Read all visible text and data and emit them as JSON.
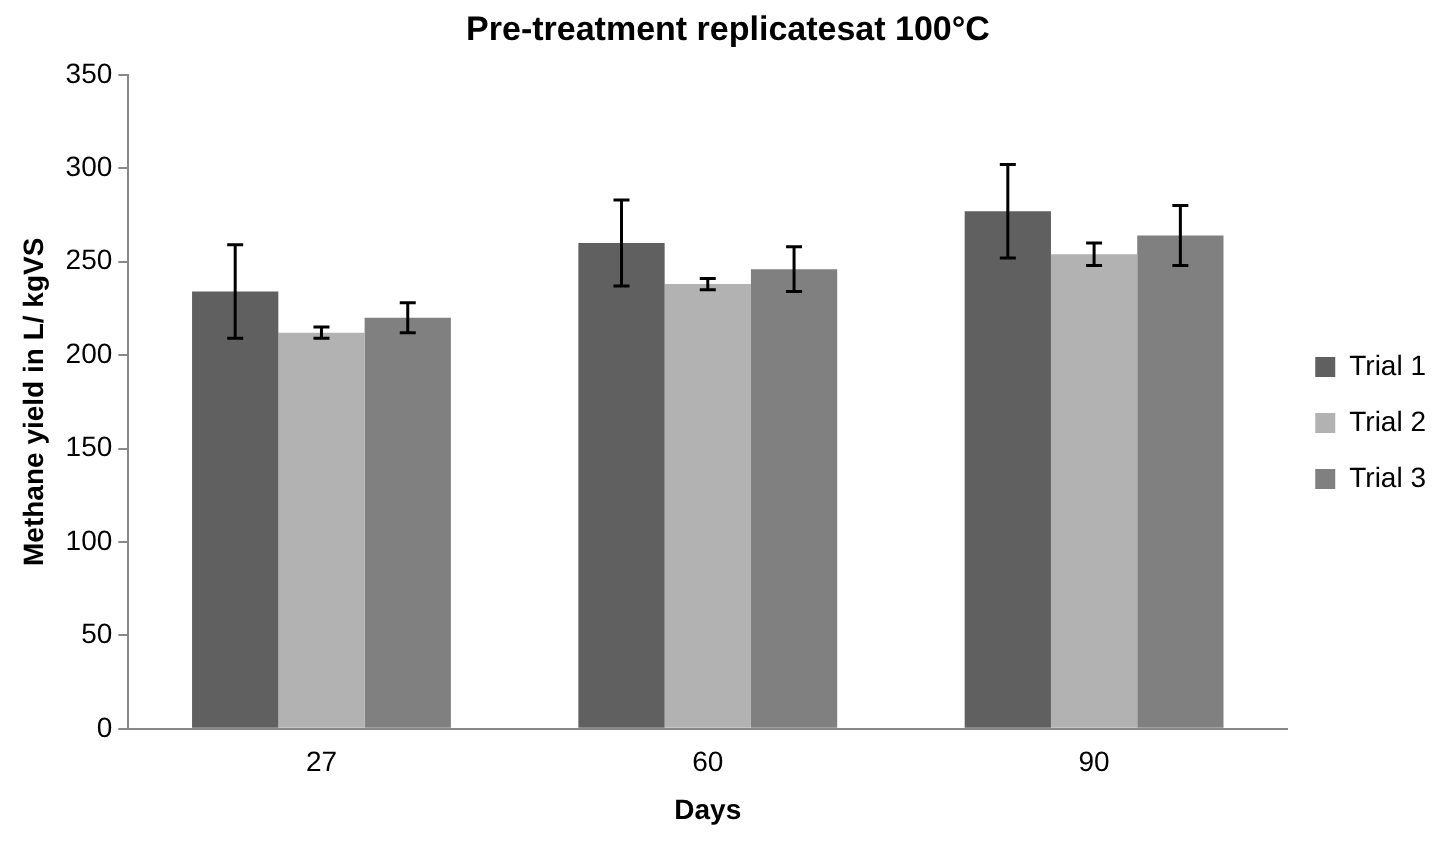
{
  "chart_data": {
    "type": "bar",
    "title": "Pre-treatment replicatesat 100°C",
    "xlabel": "Days",
    "ylabel": "Methane yield in L/ kgVS",
    "categories": [
      "27",
      "60",
      "90"
    ],
    "series": [
      {
        "name": "Trial 1",
        "color": "#606060",
        "values": [
          234,
          260,
          277
        ],
        "errors": [
          25,
          23,
          25
        ]
      },
      {
        "name": "Trial 2",
        "color": "#b2b2b2",
        "values": [
          212,
          238,
          254
        ],
        "errors": [
          3,
          3,
          6
        ]
      },
      {
        "name": "Trial 3",
        "color": "#808080",
        "values": [
          220,
          246,
          264
        ],
        "errors": [
          8,
          12,
          16
        ]
      }
    ],
    "ylim": [
      0,
      350
    ],
    "yticks": [
      0,
      50,
      100,
      150,
      200,
      250,
      300,
      350
    ],
    "grid": false,
    "legend": "right"
  }
}
